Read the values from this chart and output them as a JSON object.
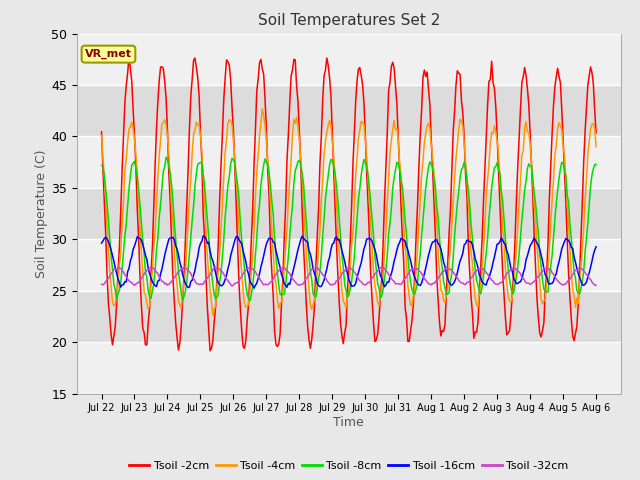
{
  "title": "Soil Temperatures Set 2",
  "xlabel": "Time",
  "ylabel": "Soil Temperature (C)",
  "ylim": [
    15,
    50
  ],
  "annotation": "VR_met",
  "series": [
    {
      "label": "Tsoil -2cm",
      "color": "#ff0000",
      "amplitude": 13.5,
      "mean": 33.5,
      "phase_hours": 14,
      "min_amp_factor": 1.0
    },
    {
      "label": "Tsoil -4cm",
      "color": "#ff9900",
      "amplitude": 9.0,
      "mean": 32.5,
      "phase_hours": 15.5,
      "min_amp_factor": 1.0
    },
    {
      "label": "Tsoil -8cm",
      "color": "#00dd00",
      "amplitude": 6.5,
      "mean": 31.0,
      "phase_hours": 17.5,
      "min_amp_factor": 1.0
    },
    {
      "label": "Tsoil -16cm",
      "color": "#0000ff",
      "amplitude": 2.3,
      "mean": 27.8,
      "phase_hours": 21.0,
      "min_amp_factor": 1.0
    },
    {
      "label": "Tsoil -32cm",
      "color": "#cc44cc",
      "amplitude": 0.8,
      "mean": 26.4,
      "phase_hours": 6.0,
      "min_amp_factor": 1.0
    }
  ],
  "xtick_labels": [
    "Jul 22",
    "Jul 23",
    "Jul 24",
    "Jul 25",
    "Jul 26",
    "Jul 27",
    "Jul 28",
    "Jul 29",
    "Jul 30",
    "Jul 31",
    "Aug 1",
    "Aug 2",
    "Aug 3",
    "Aug 4",
    "Aug 5",
    "Aug 6"
  ],
  "background_color": "#e8e8e8",
  "plot_bg_color": "#e8e8e8",
  "band_colors": [
    "#f0f0f0",
    "#dcdcdc"
  ],
  "grid_color": "#ffffff",
  "linewidth": 1.1,
  "legend_colors": [
    "#ff0000",
    "#ff9900",
    "#00dd00",
    "#0000ff",
    "#cc44cc"
  ],
  "legend_labels": [
    "Tsoil -2cm",
    "Tsoil -4cm",
    "Tsoil -8cm",
    "Tsoil -16cm",
    "Tsoil -32cm"
  ],
  "yticks": [
    15,
    20,
    25,
    30,
    35,
    40,
    45,
    50
  ]
}
